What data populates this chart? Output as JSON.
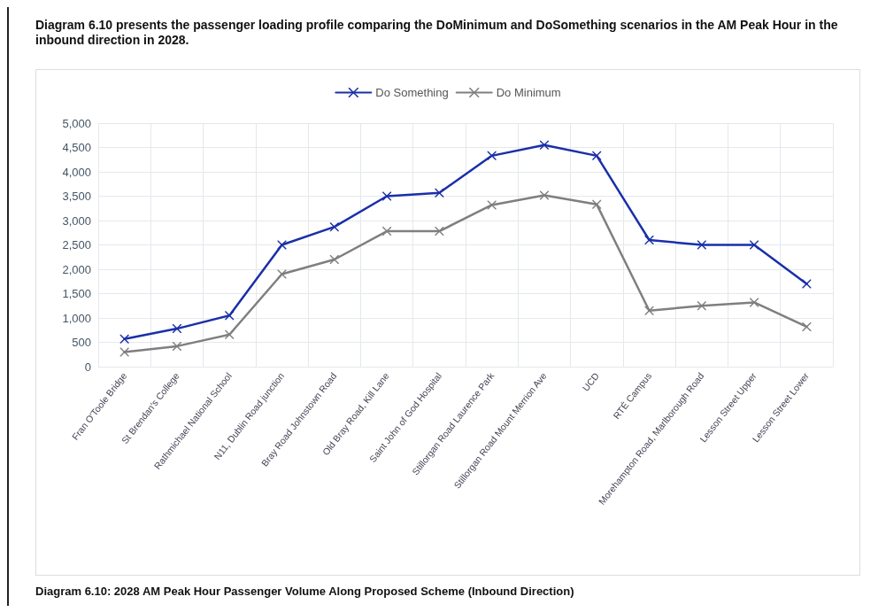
{
  "chart_data": {
    "type": "line",
    "title": "Diagram 6.10 presents the passenger loading profile comparing the DoMinimum and DoSomething scenarios in the AM Peak Hour in the inbound direction in 2028.",
    "annotations": [
      "Diagram 6.10: 2028 AM Peak Hour Passenger Volume Along Proposed Scheme (Inbound Direction)"
    ],
    "categories": [
      "Fran O'Toole Bridge",
      "St Brendan's College",
      "Rathmichael National School",
      "N11, Dublin Road junction",
      "Bray Road Johnstown Road",
      "Old Bray Road, Kill Lane",
      "Saint John of God Hospital",
      "Stillorgan Road Laurence Park",
      "Stillorgan Road Mount Merrion Ave",
      "UCD",
      "RTÉ Campus",
      "Morehampton Road, Marlborough Road",
      "Lesson Street Upper",
      "Lesson Street Lower"
    ],
    "series": [
      {
        "name": "Do Something",
        "color": "#1a2fa8",
        "values": [
          570,
          780,
          1050,
          2500,
          2870,
          3500,
          3570,
          4330,
          4550,
          4330,
          2600,
          2500,
          2500,
          1700
        ]
      },
      {
        "name": "Do Minimum",
        "color": "#7f7f7f",
        "values": [
          300,
          420,
          660,
          1900,
          2200,
          2780,
          2780,
          3320,
          3520,
          3330,
          1150,
          1250,
          1320,
          820
        ]
      }
    ],
    "ylim": [
      0,
      5000
    ],
    "yticks": [
      0,
      {
        "value": 500,
        "label": "500"
      },
      {
        "value": 1000,
        "label": "1,000"
      },
      {
        "value": 1500,
        "label": "1,500"
      },
      {
        "value": 2000,
        "label": "2,000"
      },
      {
        "value": 2500,
        "label": "2,500"
      },
      {
        "value": 3000,
        "label": "3,000"
      },
      {
        "value": 3500,
        "label": "3,500"
      },
      {
        "value": 4000,
        "label": "4,000"
      },
      {
        "value": 4500,
        "label": "4,500"
      },
      {
        "value": 5000,
        "label": "5,000"
      }
    ],
    "grid": true,
    "legend": "top",
    "marker": "cross",
    "line_style": "solid"
  }
}
